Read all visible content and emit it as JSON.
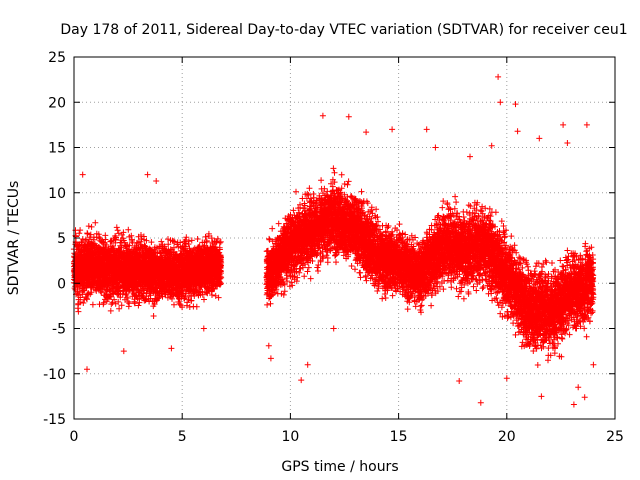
{
  "chart_data": {
    "type": "scatter",
    "title": "Day 178 of 2011, Sidereal Day-to-day VTEC variation (SDTVAR) for receiver ceu1",
    "xlabel": "GPS time / hours",
    "ylabel": "SDTVAR / TECUs",
    "xlim": [
      0,
      25
    ],
    "ylim": [
      -15,
      25
    ],
    "xticks": [
      0,
      5,
      10,
      15,
      20,
      25
    ],
    "yticks": [
      -15,
      -10,
      -5,
      0,
      5,
      10,
      15,
      20,
      25
    ],
    "grid": true,
    "marker": "+",
    "color": "#ff0000",
    "data_gap_hours": [
      6.8,
      8.9
    ],
    "trend": [
      {
        "x": 0.0,
        "y": 1.5,
        "spread": 4.5
      },
      {
        "x": 1.0,
        "y": 2.0,
        "spread": 4.0
      },
      {
        "x": 2.0,
        "y": 1.5,
        "spread": 4.0
      },
      {
        "x": 3.0,
        "y": 1.5,
        "spread": 4.0
      },
      {
        "x": 4.0,
        "y": 1.0,
        "spread": 4.0
      },
      {
        "x": 5.0,
        "y": 1.0,
        "spread": 3.5
      },
      {
        "x": 6.0,
        "y": 1.5,
        "spread": 3.5
      },
      {
        "x": 6.8,
        "y": 2.0,
        "spread": 3.0
      },
      {
        "x": 8.9,
        "y": 1.0,
        "spread": 3.5
      },
      {
        "x": 10.0,
        "y": 4.0,
        "spread": 4.5
      },
      {
        "x": 11.0,
        "y": 6.0,
        "spread": 4.5
      },
      {
        "x": 12.0,
        "y": 7.0,
        "spread": 4.5
      },
      {
        "x": 13.0,
        "y": 6.0,
        "spread": 4.5
      },
      {
        "x": 14.0,
        "y": 3.0,
        "spread": 4.5
      },
      {
        "x": 15.0,
        "y": 2.0,
        "spread": 4.0
      },
      {
        "x": 16.0,
        "y": 1.0,
        "spread": 4.0
      },
      {
        "x": 17.0,
        "y": 4.0,
        "spread": 4.5
      },
      {
        "x": 18.0,
        "y": 4.0,
        "spread": 5.0
      },
      {
        "x": 19.0,
        "y": 4.0,
        "spread": 5.0
      },
      {
        "x": 20.0,
        "y": 1.0,
        "spread": 5.0
      },
      {
        "x": 21.0,
        "y": -3.0,
        "spread": 5.0
      },
      {
        "x": 22.0,
        "y": -3.0,
        "spread": 5.0
      },
      {
        "x": 23.0,
        "y": -1.0,
        "spread": 5.0
      },
      {
        "x": 24.0,
        "y": 0.0,
        "spread": 4.5
      }
    ],
    "outliers": [
      {
        "x": 19.6,
        "y": 22.8
      },
      {
        "x": 19.7,
        "y": 20.0
      },
      {
        "x": 20.4,
        "y": 19.8
      },
      {
        "x": 11.5,
        "y": 18.5
      },
      {
        "x": 23.7,
        "y": 17.5
      },
      {
        "x": 22.6,
        "y": 17.5
      },
      {
        "x": 14.7,
        "y": 17.0
      },
      {
        "x": 16.3,
        "y": 17.0
      },
      {
        "x": 20.5,
        "y": 16.8
      },
      {
        "x": 12.7,
        "y": 18.4
      },
      {
        "x": 13.5,
        "y": 16.7
      },
      {
        "x": 19.3,
        "y": 15.2
      },
      {
        "x": 3.4,
        "y": 12.0
      },
      {
        "x": 0.4,
        "y": 12.0
      },
      {
        "x": 3.8,
        "y": 11.3
      },
      {
        "x": 18.8,
        "y": -13.2
      },
      {
        "x": 23.1,
        "y": -13.4
      },
      {
        "x": 23.6,
        "y": -12.6
      },
      {
        "x": 21.6,
        "y": -12.5
      },
      {
        "x": 10.5,
        "y": -10.7
      },
      {
        "x": 10.8,
        "y": -9.0
      },
      {
        "x": 0.6,
        "y": -9.5
      },
      {
        "x": 9.1,
        "y": -8.3
      },
      {
        "x": 9.0,
        "y": -6.9
      },
      {
        "x": 17.8,
        "y": -10.8
      },
      {
        "x": 12.0,
        "y": -5.0
      },
      {
        "x": 2.3,
        "y": -7.5
      },
      {
        "x": 4.5,
        "y": -7.2
      },
      {
        "x": 6.0,
        "y": -5.0
      },
      {
        "x": 16.7,
        "y": 15.0
      },
      {
        "x": 18.3,
        "y": 14.0
      },
      {
        "x": 21.5,
        "y": 16.0
      },
      {
        "x": 22.8,
        "y": 15.5
      },
      {
        "x": 24.0,
        "y": -9.0
      },
      {
        "x": 23.3,
        "y": -11.5
      },
      {
        "x": 20.0,
        "y": -10.5
      }
    ],
    "x_resolution_hours": 0.009
  }
}
